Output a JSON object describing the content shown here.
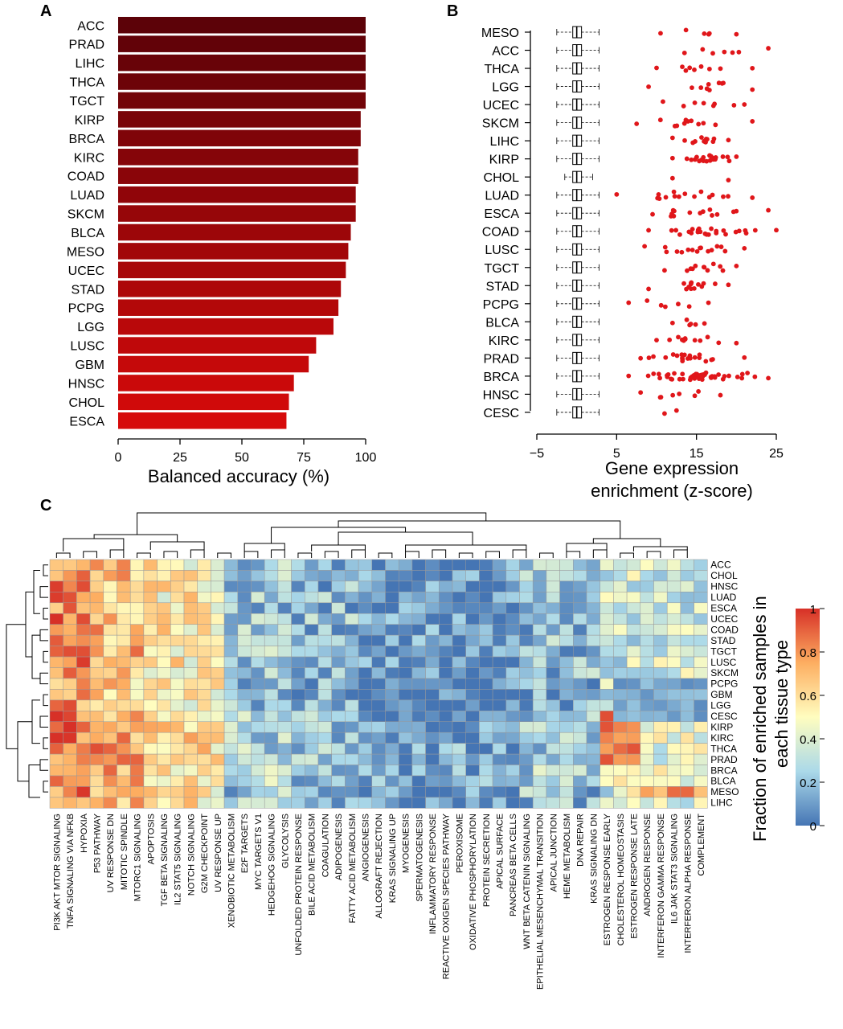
{
  "panels": {
    "a": "A",
    "b": "B",
    "c": "C"
  },
  "chart_data": [
    {
      "type": "bar",
      "orientation": "horizontal",
      "categories": [
        "ACC",
        "PRAD",
        "LIHC",
        "THCA",
        "TGCT",
        "KIRP",
        "BRCA",
        "KIRC",
        "COAD",
        "LUAD",
        "SKCM",
        "BLCA",
        "MESO",
        "UCEC",
        "STAD",
        "PCPG",
        "LGG",
        "LUSC",
        "GBM",
        "HNSC",
        "CHOL",
        "ESCA"
      ],
      "values": [
        100,
        100,
        100,
        100,
        100,
        98,
        98,
        97,
        97,
        96,
        96,
        94,
        93,
        92,
        90,
        89,
        87,
        80,
        77,
        71,
        69,
        68
      ],
      "xlabel": "Balanced accuracy (%)",
      "xlim": [
        0,
        100
      ],
      "xticks": [
        "0",
        "25",
        "50",
        "75",
        "100"
      ],
      "color_dark": "#5c0208",
      "color_light": "#d60a0a"
    },
    {
      "type": "box+scatter",
      "categories": [
        "MESO",
        "ACC",
        "THCA",
        "LGG",
        "UCEC",
        "SKCM",
        "LIHC",
        "KIRP",
        "CHOL",
        "LUAD",
        "ESCA",
        "COAD",
        "LUSC",
        "TGCT",
        "STAD",
        "PCPG",
        "BLCA",
        "KIRC",
        "PRAD",
        "BRCA",
        "HNSC",
        "CESC"
      ],
      "box_median": 0,
      "box_q1": -0.5,
      "box_q3": 0.6,
      "whisker_low": -2.5,
      "whisker_high": 2.8,
      "point_color": "#e0161a",
      "point_ranges": [
        [
          10.5,
          20
        ],
        [
          13.5,
          24
        ],
        [
          10,
          22
        ],
        [
          9,
          22
        ],
        [
          10.8,
          21
        ],
        [
          7.5,
          22
        ],
        [
          12,
          19
        ],
        [
          12,
          20
        ],
        [
          12,
          19
        ],
        [
          5,
          22
        ],
        [
          9.5,
          24
        ],
        [
          9,
          25
        ],
        [
          8.5,
          21
        ],
        [
          11,
          20
        ],
        [
          9,
          19
        ],
        [
          6.5,
          16.5
        ],
        [
          12,
          16
        ],
        [
          10,
          20
        ],
        [
          8,
          21
        ],
        [
          6.5,
          24
        ],
        [
          8,
          18
        ],
        [
          11,
          12.5
        ]
      ],
      "point_counts": [
        6,
        7,
        9,
        10,
        8,
        12,
        12,
        22,
        2,
        16,
        15,
        25,
        16,
        12,
        14,
        7,
        6,
        12,
        22,
        50,
        8,
        2
      ],
      "xlabel_line1": "Gene expression",
      "xlabel_line2": "enrichment (z-score)",
      "xlim": [
        -5,
        25
      ],
      "xticks": [
        "−5",
        "5",
        "15",
        "25"
      ]
    },
    {
      "type": "heatmap",
      "rows": [
        "ACC",
        "CHOL",
        "HNSC",
        "LUAD",
        "ESCA",
        "UCEC",
        "COAD",
        "STAD",
        "TGCT",
        "LUSC",
        "SKCM",
        "PCPG",
        "GBM",
        "LGG",
        "CESC",
        "KIRP",
        "KIRC",
        "THCA",
        "PRAD",
        "BRCA",
        "BLCA",
        "MESO",
        "LIHC"
      ],
      "columns": [
        "PI3K AKT MTOR SIGNALING",
        "TNFA SIGNALING VIA NFKB",
        "HYPOXIA",
        "P53 PATHWAY",
        "UV RESPONSE DN",
        "MITOTIC SPINDLE",
        "MTORC1 SIGNALING",
        "APOPTOSIS",
        "TGF BETA SIGNALING",
        "IL2 STAT5 SIGNALING",
        "NOTCH SIGNALING",
        "G2M CHECKPOINT",
        "UV RESPONSE UP",
        "XENOBIOTIC METABOLISM",
        "E2F TARGETS",
        "MYC TARGETS V1",
        "HEDGEHOG SIGNALING",
        "GLYCOLYSIS",
        "UNFOLDED PROTEIN RESPONSE",
        "BILE ACID METABOLISM",
        "COAGULATION",
        "ADIPOGENESIS",
        "FATTY ACID METABOLISM",
        "ANGIOGENESIS",
        "ALLOGRAFT REJECTION",
        "KRAS SIGNALING UP",
        "MYOGENESIS",
        "SPERMATOGENESIS",
        "INFLAMMATORY RESPONSE",
        "REACTIVE OXIGEN SPECIES PATHWAY",
        "PEROXISOME",
        "OXIDATIVE PHOSPHORYLATION",
        "PROTEIN SECRETION",
        "APICAL SURFACE",
        "PANCREAS BETA CELLS",
        "WNT BETA CATENIN SIGNALING",
        "EPITHELIAL MESENCHYMAL TRANSITION",
        "APICAL JUNCTION",
        "HEME METABOLISM",
        "DNA REPAIR",
        "KRAS SIGNALING DN",
        "ESTROGEN RESPONSE EARLY",
        "CHOLESTEROL HOMEOSTASIS",
        "ESTROGEN RESPONSE LATE",
        "ANDROGEN RESPONSE",
        "INTERFERON GAMMA RESPONSE",
        "IL6 JAK STAT3 SIGNALING",
        "INTERFERON ALPHA RESPONSE",
        "COMPLEMENT"
      ],
      "column_blocks": [
        {
          "count": 3,
          "base": 0.82
        },
        {
          "count": 4,
          "base": 0.7
        },
        {
          "count": 6,
          "base": 0.55
        },
        {
          "count": 5,
          "base": 0.22
        },
        {
          "count": 5,
          "base": 0.18
        },
        {
          "count": 12,
          "base": 0.07
        },
        {
          "count": 6,
          "base": 0.2
        },
        {
          "count": 8,
          "base": 0.35
        }
      ],
      "color_low": "#4575b4",
      "color_mid": "#fffdbf",
      "color_high": "#d73027",
      "colorbar_label_line1": "Fraction of enriched samples in",
      "colorbar_label_line2": "each tissue type",
      "colorbar_ticks": [
        "1",
        "0.8",
        "0.6",
        "0.4",
        "0.2",
        "0"
      ]
    }
  ]
}
